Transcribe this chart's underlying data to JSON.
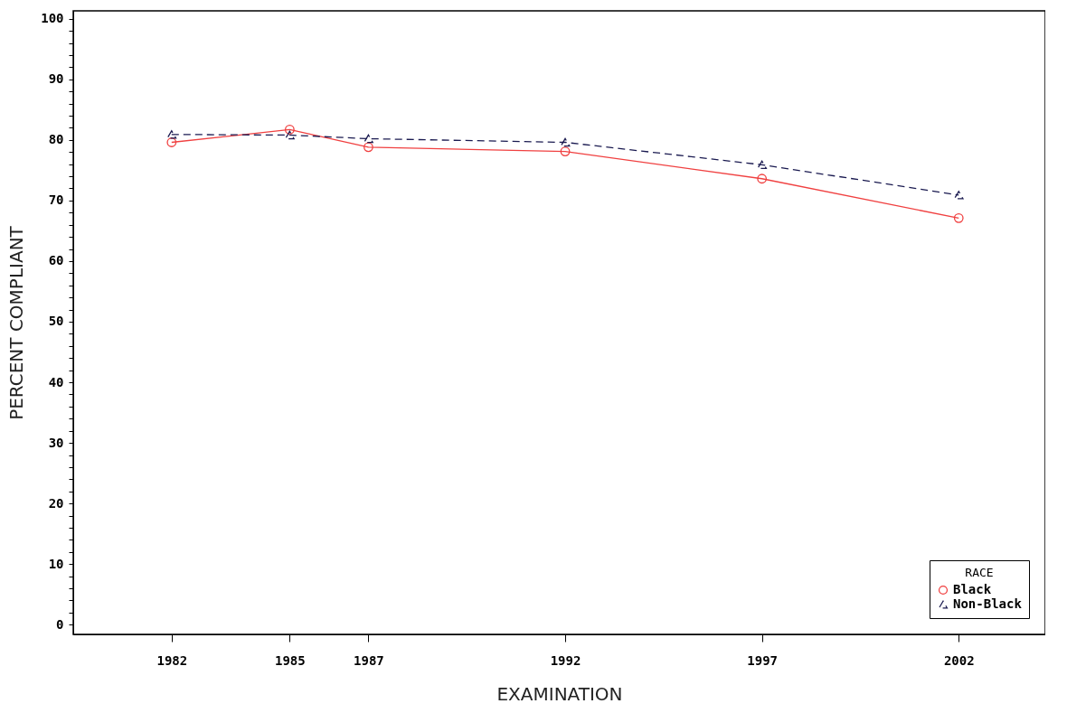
{
  "chart_data": {
    "type": "line",
    "xlabel": "EXAMINATION",
    "ylabel": "PERCENT COMPLIANT",
    "legend_title": "RACE",
    "legend": "bottom right",
    "grid": false,
    "x": [
      1982,
      1985,
      1987,
      1992,
      1997,
      2002
    ],
    "xlim": [
      1979.5,
      2004.2
    ],
    "xticks": [
      1982,
      1985,
      1987,
      1992,
      1997,
      2002
    ],
    "ylim": [
      -1.6,
      101.3
    ],
    "yticks": [
      0,
      {
        "value": 2,
        "label": null
      },
      {
        "value": 4,
        "label": null
      },
      {
        "value": 6,
        "label": null
      },
      {
        "value": 8,
        "label": null
      },
      10,
      {
        "value": 12,
        "label": null
      },
      {
        "value": 14,
        "label": null
      },
      {
        "value": 16,
        "label": null
      },
      {
        "value": 18,
        "label": null
      },
      20,
      {
        "value": 22,
        "label": null
      },
      {
        "value": 24,
        "label": null
      },
      {
        "value": 26,
        "label": null
      },
      {
        "value": 28,
        "label": null
      },
      30,
      {
        "value": 32,
        "label": null
      },
      {
        "value": 34,
        "label": null
      },
      {
        "value": 36,
        "label": null
      },
      {
        "value": 38,
        "label": null
      },
      40,
      {
        "value": 42,
        "label": null
      },
      {
        "value": 44,
        "label": null
      },
      {
        "value": 46,
        "label": null
      },
      {
        "value": 48,
        "label": null
      },
      50,
      {
        "value": 52,
        "label": null
      },
      {
        "value": 54,
        "label": null
      },
      {
        "value": 56,
        "label": null
      },
      {
        "value": 58,
        "label": null
      },
      60,
      {
        "value": 62,
        "label": null
      },
      {
        "value": 64,
        "label": null
      },
      {
        "value": 66,
        "label": null
      },
      {
        "value": 68,
        "label": null
      },
      70,
      {
        "value": 72,
        "label": null
      },
      {
        "value": 74,
        "label": null
      },
      {
        "value": 76,
        "label": null
      },
      {
        "value": 78,
        "label": null
      },
      80,
      {
        "value": 82,
        "label": null
      },
      {
        "value": 84,
        "label": null
      },
      {
        "value": 86,
        "label": null
      },
      {
        "value": 88,
        "label": null
      },
      90,
      {
        "value": 92,
        "label": null
      },
      {
        "value": 94,
        "label": null
      },
      {
        "value": 96,
        "label": null
      },
      {
        "value": 98,
        "label": null
      },
      100
    ],
    "series": [
      {
        "name": "Black",
        "color": "#f04040",
        "marker": "circle",
        "line_style": "solid",
        "values": [
          79.6,
          81.7,
          78.8,
          78.1,
          73.6,
          67.1
        ]
      },
      {
        "name": "Non-Black",
        "color": "#1a1a50",
        "marker": "triangle",
        "line_style": "dashed",
        "values": [
          80.9,
          80.8,
          80.2,
          79.6,
          75.9,
          70.9
        ]
      }
    ]
  }
}
